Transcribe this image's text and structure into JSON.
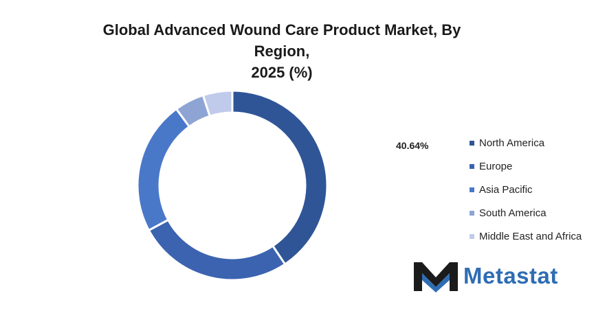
{
  "chart_data": {
    "type": "pie",
    "title_line1": "Global Advanced Wound Care Product Market, By Region,",
    "title_line2": "2025 (%)",
    "categories": [
      "North America",
      "Europe",
      "Asia Pacific",
      "South America",
      "Middle East and Africa"
    ],
    "values": [
      40.64,
      26.5,
      22.8,
      5.06,
      5.0
    ],
    "value_unit": "%",
    "colors": [
      "#2f5597",
      "#3b63b0",
      "#4a78c9",
      "#8ea4d4",
      "#c0cbeb"
    ],
    "data_labels": [
      "40.64%"
    ],
    "legend_position": "right",
    "donut": true
  },
  "brand": {
    "logo_text": "Metastat"
  }
}
